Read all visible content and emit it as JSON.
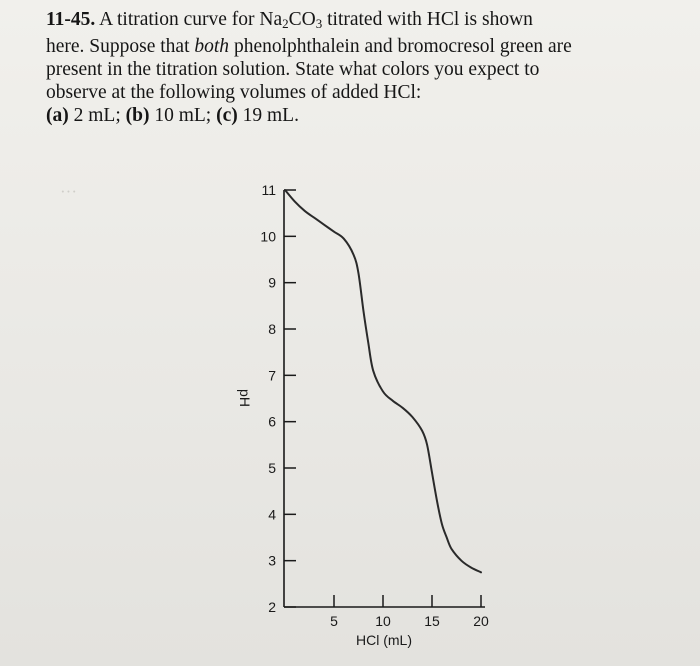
{
  "problem": {
    "number": "11-45.",
    "line1_pre": "A titration curve for Na",
    "line1_sub1": "2",
    "line1_mid": "CO",
    "line1_sub2": "3",
    "line1_post": " titrated with HCl is shown",
    "line2_pre": "here. Suppose that ",
    "line2_emph": "both",
    "line2_post": " phenolphthalein and bromocresol green are",
    "line3": "present in the titration solution. State what colors you expect to",
    "line4": "observe at the following volumes of added HCl:",
    "part_a_label": "(a)",
    "part_a": " 2 mL; ",
    "part_b_label": "(b)",
    "part_b": " 10 mL; ",
    "part_c_label": "(c)",
    "part_c": " 19 mL."
  },
  "chart_data": {
    "type": "line",
    "title": "",
    "xlabel": "HCl (mL)",
    "ylabel": "pH",
    "xlim": [
      0,
      20
    ],
    "ylim": [
      2,
      11
    ],
    "xticks": [
      5,
      10,
      15,
      20
    ],
    "yticks": [
      2,
      3,
      4,
      5,
      6,
      7,
      8,
      9,
      10,
      11
    ],
    "grid": false,
    "series": [
      {
        "name": "",
        "x": [
          0,
          1,
          2,
          3,
          4,
          5,
          6,
          7,
          7.5,
          8,
          8.5,
          9,
          10,
          11,
          12,
          13,
          14,
          14.5,
          15,
          15.5,
          16,
          16.5,
          17,
          18,
          19,
          20
        ],
        "y": [
          11.0,
          10.75,
          10.55,
          10.4,
          10.25,
          10.1,
          9.95,
          9.6,
          9.2,
          8.4,
          7.7,
          7.1,
          6.65,
          6.45,
          6.3,
          6.1,
          5.8,
          5.5,
          4.9,
          4.3,
          3.8,
          3.5,
          3.25,
          3.0,
          2.85,
          2.75
        ]
      }
    ]
  }
}
